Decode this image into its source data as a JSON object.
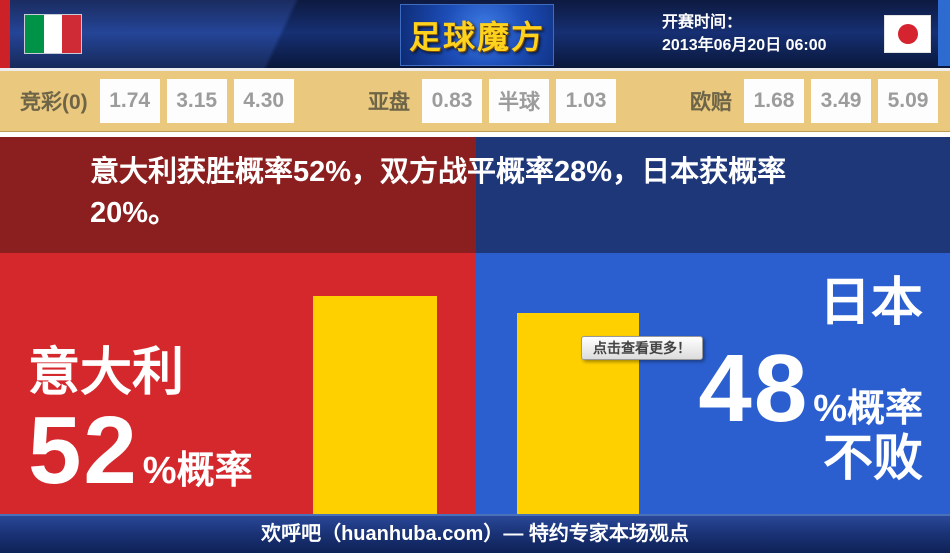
{
  "header": {
    "logo": "足球魔方",
    "kickoff_label": "开赛时间：",
    "kickoff_time": "2013年06月20日 06:00"
  },
  "odds": {
    "jingcai": {
      "label": "竞彩(0)",
      "values": [
        "1.74",
        "3.15",
        "4.30"
      ]
    },
    "yapan": {
      "label": "亚盘",
      "values": [
        "0.83",
        "半球",
        "1.03"
      ]
    },
    "oupei": {
      "label": "欧赔",
      "values": [
        "1.68",
        "3.49",
        "5.09"
      ]
    }
  },
  "main": {
    "summary_line1": "意大利获胜概率52%，双方战平概率28%，日本获概率",
    "summary_line2": "20%。",
    "left": {
      "team": "意大利",
      "percent": "52",
      "suffix": "%概率",
      "probability": 52
    },
    "right": {
      "team": "日本",
      "percent": "48",
      "suffix": "%概率",
      "note": "不败",
      "probability": 48
    },
    "tooltip": "点击查看更多！"
  },
  "footer": {
    "text": "欢呼吧（huanhuba.com）— 特约专家本场观点"
  },
  "colors": {
    "dark_red": "#8b1e1e",
    "bright_red": "#d5282c",
    "dark_blue": "#1e3779",
    "bright_blue": "#2b5fd0",
    "bar_yellow": "#fed000",
    "odds_tan": "#eac87d",
    "logo_gold": "#ffd21e",
    "header_navy": "#1b3a8c"
  }
}
